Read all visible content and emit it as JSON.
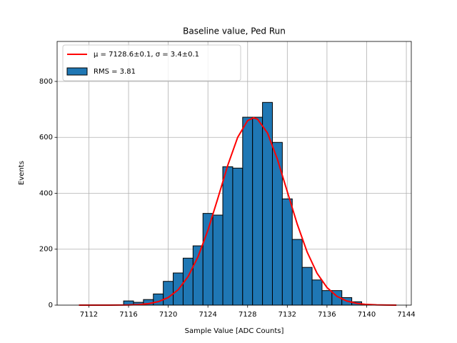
{
  "chart_data": {
    "type": "histogram",
    "title": "Baseline value, Ped Run",
    "xlabel": "Sample Value [ADC Counts]",
    "ylabel": "Events",
    "name": "RMS = 3.81",
    "color": "#1f77b4",
    "bins": [
      7115.5,
      7116.5,
      7117.5,
      7118.5,
      7119.5,
      7120.5,
      7121.5,
      7122.5,
      7123.5,
      7124.5,
      7125.5,
      7126.5,
      7127.5,
      7128.5,
      7129.5,
      7130.5,
      7131.5,
      7132.5,
      7133.5,
      7134.5,
      7135.5,
      7136.5,
      7137.5,
      7138.5,
      7139.5,
      7140.5
    ],
    "counts": [
      15,
      10,
      20,
      40,
      85,
      115,
      168,
      212,
      328,
      322,
      495,
      490,
      672,
      672,
      725,
      582,
      380,
      235,
      135,
      90,
      52,
      52,
      27,
      12,
      2
    ],
    "series": [
      {
        "name": "μ = 7128.6±0.1, σ = 3.4±0.1",
        "type": "line",
        "color": "#ff0000",
        "x": [
          7111,
          7112,
          7113,
          7114,
          7115,
          7116,
          7117,
          7118,
          7119,
          7120,
          7121,
          7122,
          7123,
          7124,
          7125,
          7126,
          7127,
          7128,
          7128.6,
          7129,
          7130,
          7131,
          7132,
          7133,
          7134,
          7135,
          7136,
          7137,
          7138,
          7139,
          7140,
          7141,
          7142,
          7143
        ],
        "values": [
          0,
          0,
          0,
          0.1,
          0.2,
          0.7,
          2,
          5.2,
          12.4,
          27.3,
          55,
          102,
          173,
          268,
          382,
          500,
          600,
          660,
          670,
          665,
          616,
          522,
          406,
          290,
          190,
          114,
          63,
          31.7,
          14.7,
          6.2,
          2.4,
          0.9,
          0.3,
          0.1
        ]
      }
    ],
    "xlim": [
      7108.8,
      7144.5
    ],
    "ylim": [
      0,
      943
    ],
    "xticks": [
      7112,
      7116,
      7120,
      7124,
      7128,
      7132,
      7136,
      7140,
      7144
    ],
    "yticks": [
      0,
      200,
      400,
      600,
      800
    ],
    "grid": true,
    "legend": "upper left"
  }
}
